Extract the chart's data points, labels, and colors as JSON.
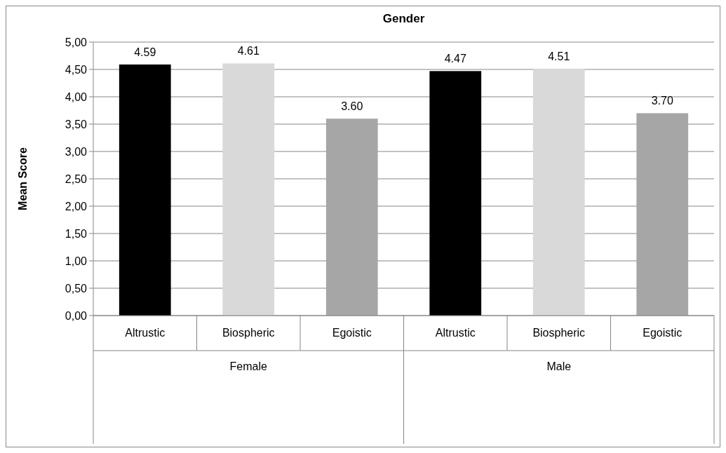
{
  "chart_data": {
    "type": "bar",
    "title": "Gender",
    "ylabel": "Mean Score",
    "categories": [
      "Altrustic",
      "Biospheric",
      "Egoistic",
      "Altrustic",
      "Biospheric",
      "Egoistic"
    ],
    "values": [
      4.59,
      4.61,
      3.6,
      4.47,
      4.51,
      3.7
    ],
    "colors": [
      "#000000",
      "#d9d9d9",
      "#a6a6a6",
      "#000000",
      "#d9d9d9",
      "#a6a6a6"
    ],
    "ylim": [
      0,
      5
    ],
    "yticks": [
      {
        "value": 0,
        "label": "0,00"
      },
      {
        "value": 0.5,
        "label": "0,50"
      },
      {
        "value": 1,
        "label": "1,00"
      },
      {
        "value": 1.5,
        "label": "1,50"
      },
      {
        "value": 2,
        "label": "2,00"
      },
      {
        "value": 2.5,
        "label": "2,50"
      },
      {
        "value": 3,
        "label": "3,00"
      },
      {
        "value": 3.5,
        "label": "3,50"
      },
      {
        "value": 4,
        "label": "4,00"
      },
      {
        "value": 4.5,
        "label": "4,50"
      },
      {
        "value": 5,
        "label": "5,00"
      }
    ],
    "value_labels": [
      "4.59",
      "4.61",
      "3.60",
      "4.47",
      "4.51",
      "3.70"
    ],
    "grid": "y",
    "annotations": [
      "Female",
      "Male"
    ]
  }
}
